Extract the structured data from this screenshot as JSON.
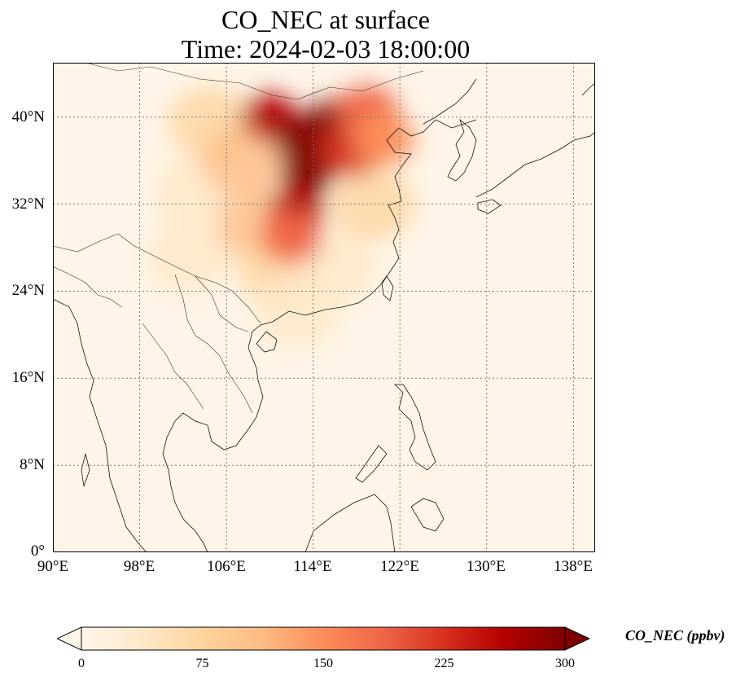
{
  "title": {
    "line1": "CO_NEC at surface",
    "line2": "Time: 2024-02-03 18:00:00"
  },
  "map": {
    "extent": {
      "lon": [
        90,
        140
      ],
      "lat": [
        0,
        45
      ]
    },
    "lat_ticks": [
      {
        "value": 0,
        "label": "0°"
      },
      {
        "value": 8,
        "label": "8°N"
      },
      {
        "value": 16,
        "label": "16°N"
      },
      {
        "value": 24,
        "label": "24°N"
      },
      {
        "value": 32,
        "label": "32°N"
      },
      {
        "value": 40,
        "label": "40°N"
      }
    ],
    "lon_ticks": [
      {
        "value": 90,
        "label": "90°E"
      },
      {
        "value": 98,
        "label": "98°E"
      },
      {
        "value": 106,
        "label": "106°E"
      },
      {
        "value": 114,
        "label": "114°E"
      },
      {
        "value": 122,
        "label": "122°E"
      },
      {
        "value": 130,
        "label": "130°E"
      },
      {
        "value": 138,
        "label": "138°E"
      }
    ],
    "gridlines": true,
    "plume": [
      {
        "lon": 103.0,
        "lat": 33.0,
        "value": 40
      },
      {
        "lon": 102.5,
        "lat": 27.0,
        "value": 35
      },
      {
        "lon": 104.5,
        "lat": 39.5,
        "value": 60
      },
      {
        "lon": 107.5,
        "lat": 36.0,
        "value": 95
      },
      {
        "lon": 109.0,
        "lat": 30.0,
        "value": 110
      },
      {
        "lon": 111.0,
        "lat": 26.0,
        "value": 60
      },
      {
        "lon": 112.5,
        "lat": 22.0,
        "value": 30
      },
      {
        "lon": 116.0,
        "lat": 26.0,
        "value": 30
      },
      {
        "lon": 119.5,
        "lat": 32.0,
        "value": 70
      },
      {
        "lon": 110.0,
        "lat": 40.0,
        "value": 280
      },
      {
        "lon": 113.0,
        "lat": 38.0,
        "value": 300
      },
      {
        "lon": 116.0,
        "lat": 39.5,
        "value": 300
      },
      {
        "lon": 113.5,
        "lat": 35.0,
        "value": 300
      },
      {
        "lon": 112.5,
        "lat": 31.5,
        "value": 260
      },
      {
        "lon": 112.0,
        "lat": 29.0,
        "value": 180
      },
      {
        "lon": 117.5,
        "lat": 37.0,
        "value": 240
      },
      {
        "lon": 119.0,
        "lat": 40.5,
        "value": 200
      },
      {
        "lon": 120.5,
        "lat": 38.0,
        "value": 150
      }
    ]
  },
  "colorbar": {
    "label": "CO_NEC (ppbv)",
    "min": 0,
    "max": 300,
    "extend": "both",
    "colormap": "OrRd",
    "ticks": [
      {
        "value": 0,
        "label": "0"
      },
      {
        "value": 75,
        "label": "75"
      },
      {
        "value": 150,
        "label": "150"
      },
      {
        "value": 225,
        "label": "225"
      },
      {
        "value": 300,
        "label": "300"
      }
    ],
    "colors": [
      "#fff7ec",
      "#fee8c8",
      "#fdd49e",
      "#fdbb84",
      "#fc8d59",
      "#ef6548",
      "#d7301f",
      "#b30000",
      "#7f0000"
    ]
  }
}
